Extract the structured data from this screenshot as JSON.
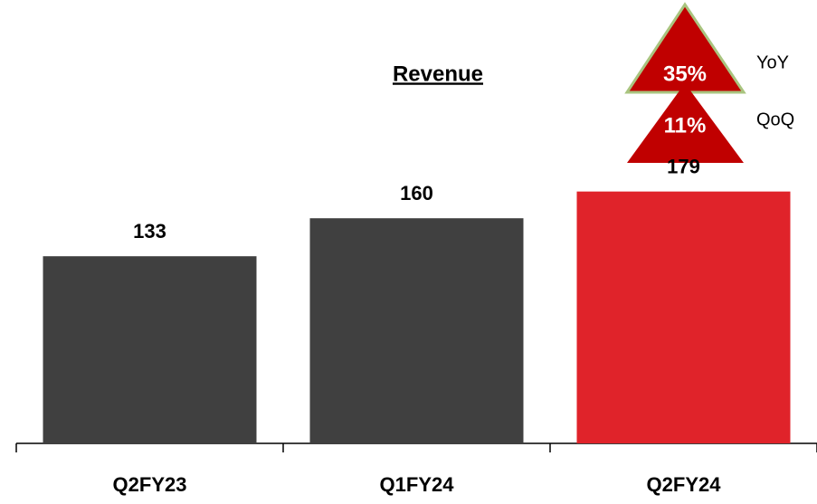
{
  "chart_data": {
    "type": "bar",
    "title": "Revenue",
    "categories": [
      "Q2FY23",
      "Q1FY24",
      "Q2FY24"
    ],
    "values": [
      133,
      160,
      179
    ],
    "colors": [
      "#404040",
      "#404040",
      "#e0232a"
    ],
    "ylim": [
      0,
      200
    ],
    "annotations": [
      {
        "text": "35%",
        "caption": "YoY"
      },
      {
        "text": "11%",
        "caption": "QoQ"
      }
    ]
  }
}
